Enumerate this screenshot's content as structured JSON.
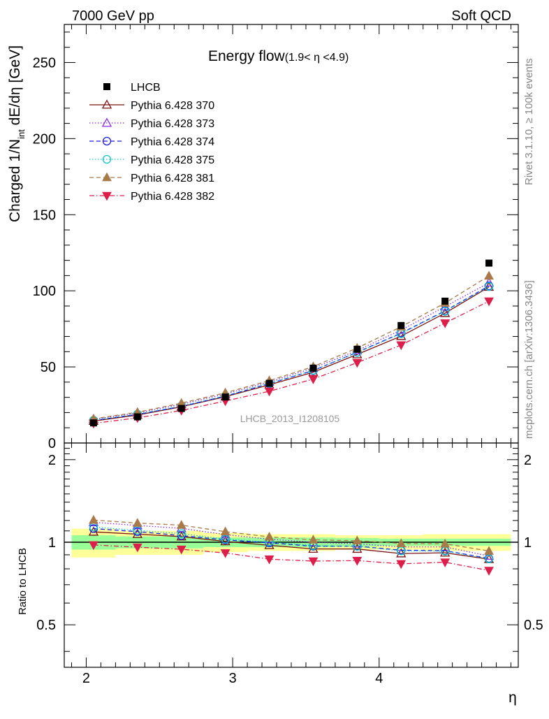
{
  "header": {
    "left": "7000 GeV pp",
    "right": "Soft QCD"
  },
  "side_labels": {
    "rivet": "Rivet 3.1.10, ≥ 100k events",
    "mcplots": "mcplots.cern.ch [arXiv:1306.3436]"
  },
  "chart_data": {
    "type": "scatter",
    "title": "Energy flow",
    "title_suffix": "(1.9< η <4.9)",
    "analysis_label": "LHCB_2013_I1208105",
    "xlabel": "η",
    "ylabel_main": "Charged 1/N",
    "ylabel_sub": "int",
    "ylabel_tail": " dE/dη [GeV]",
    "ylabel_ratio": "Ratio to LHCB",
    "xlim": [
      1.85,
      4.95
    ],
    "ylim": [
      0,
      275
    ],
    "ratio_ylim": [
      0.35,
      2.3
    ],
    "ratio_scale": "log",
    "x_ticks": [
      "2",
      "3",
      "4"
    ],
    "y_ticks": [
      "0",
      "50",
      "100",
      "150",
      "200",
      "250"
    ],
    "ratio_ticks": [
      "0.5",
      "1",
      "2"
    ],
    "x": [
      2.05,
      2.35,
      2.65,
      2.95,
      3.25,
      3.55,
      3.85,
      4.15,
      4.45,
      4.75
    ],
    "bin_edges": [
      1.9,
      2.2,
      2.5,
      2.8,
      3.1,
      3.4,
      3.7,
      4.0,
      4.3,
      4.6,
      4.9
    ],
    "data": {
      "name": "LHCB",
      "values": [
        13.2,
        17.2,
        22.7,
        30.2,
        39.2,
        49.2,
        61.6,
        77.2,
        93.2,
        118.2
      ],
      "band_inner": [
        0.06,
        0.05,
        0.05,
        0.04,
        0.04,
        0.04,
        0.035,
        0.03,
        0.03,
        0.03
      ],
      "band_outer": [
        0.12,
        0.1,
        0.1,
        0.08,
        0.07,
        0.07,
        0.06,
        0.06,
        0.07,
        0.07
      ]
    },
    "series": [
      {
        "name": "Pythia 6.428 370",
        "color": "#7a1010",
        "dash": "",
        "marker": "triangle-open",
        "values": [
          14.4,
          18.4,
          23.8,
          30.4,
          38.2,
          46.5,
          58.2,
          70.2,
          85.3,
          102.5
        ]
      },
      {
        "name": "Pythia 6.428 373",
        "color": "#8a2be2",
        "dash": "1.5,2.5",
        "marker": "triangle-open",
        "values": [
          15.6,
          19.8,
          25.5,
          32.2,
          40.2,
          49.2,
          60.8,
          74.2,
          89.6,
          105.3
        ]
      },
      {
        "name": "Pythia 6.428 374",
        "color": "#1a1ae6",
        "dash": "6,4",
        "marker": "circle-open",
        "values": [
          14.8,
          18.8,
          24.0,
          30.8,
          39.0,
          47.6,
          59.6,
          72.2,
          86.8,
          103.2
        ]
      },
      {
        "name": "Pythia 6.428 375",
        "color": "#12c8c8",
        "dash": "1.5,2.5",
        "marker": "circle-open",
        "values": [
          15.0,
          19.0,
          24.4,
          31.0,
          39.3,
          47.8,
          59.5,
          71.8,
          86.5,
          102.8
        ]
      },
      {
        "name": "Pythia 6.428 381",
        "color": "#a87a4a",
        "dash": "6,4",
        "marker": "triangle-filled",
        "values": [
          15.9,
          20.2,
          26.2,
          33.0,
          41.0,
          50.2,
          62.4,
          76.4,
          92.0,
          109.8
        ]
      },
      {
        "name": "Pythia 6.428 382",
        "color": "#dc1e4a",
        "dash": "7,3,1.5,3",
        "marker": "triangle-down-filled",
        "values": [
          12.9,
          16.5,
          21.4,
          27.6,
          34.0,
          42.0,
          52.8,
          64.4,
          78.8,
          93.2
        ]
      }
    ]
  }
}
